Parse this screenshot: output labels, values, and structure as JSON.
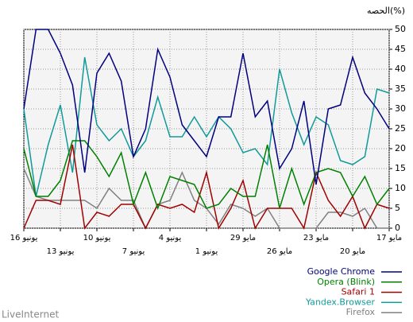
{
  "chart_data": {
    "type": "line",
    "y_label": "الحصه(%)",
    "footer": "LiveInternet",
    "categories": [
      "16 يونيو",
      null,
      null,
      "13 يونيو",
      null,
      null,
      "10 يونيو",
      null,
      null,
      "7 يونيو",
      null,
      null,
      "4 يونيو",
      null,
      null,
      "1 يونيو",
      null,
      null,
      "29 مايو",
      null,
      null,
      "26 مايو",
      null,
      null,
      "23 مايو",
      null,
      null,
      "20 مايو",
      null,
      null,
      "17 مايو"
    ],
    "series": [
      {
        "name": "Google Chrome",
        "color": "#000080",
        "values": [
          30,
          50,
          50,
          44,
          36,
          14,
          39,
          44,
          37,
          18,
          25,
          45,
          38,
          26,
          22,
          18,
          28,
          28,
          44,
          28,
          32,
          15,
          20,
          32,
          11,
          30,
          31,
          43,
          34,
          30,
          25
        ]
      },
      {
        "name": "Opera (Blink)",
        "color": "#008000",
        "values": [
          20,
          8,
          8,
          12,
          22,
          22,
          18,
          13,
          19,
          6,
          14,
          5,
          13,
          12,
          11,
          5,
          6,
          10,
          8,
          8,
          21,
          5,
          15,
          6,
          14,
          15,
          14,
          8,
          13,
          6,
          10
        ]
      },
      {
        "name": "Safari 1",
        "color": "#a00000",
        "values": [
          0,
          7,
          7,
          6,
          21,
          0,
          4,
          3,
          6,
          6,
          0,
          6,
          5,
          6,
          4,
          14,
          0,
          5,
          12,
          0,
          5,
          5,
          5,
          0,
          14,
          7,
          3,
          8,
          0,
          6,
          5
        ]
      },
      {
        "name": "Yandex.Browser",
        "color": "#129a9a",
        "values": [
          30,
          8,
          21,
          31,
          14,
          43,
          26,
          22,
          25,
          18,
          22,
          33,
          23,
          23,
          28,
          23,
          28,
          25,
          19,
          20,
          16,
          40,
          29,
          21,
          28,
          26,
          17,
          16,
          18,
          35,
          34
        ]
      },
      {
        "name": "Firefox",
        "color": "#808080",
        "values": [
          15,
          8,
          7,
          7,
          7,
          7,
          5,
          10,
          7,
          7,
          0,
          6,
          7,
          14,
          7,
          5,
          1,
          6,
          5,
          3,
          5,
          0,
          0,
          0,
          0,
          4,
          4,
          3,
          5,
          0,
          0
        ]
      }
    ],
    "ylim": [
      0,
      50
    ],
    "yticks": [
      0,
      5,
      10,
      15,
      20,
      25,
      30,
      35,
      40,
      45,
      50
    ],
    "grid": true
  }
}
